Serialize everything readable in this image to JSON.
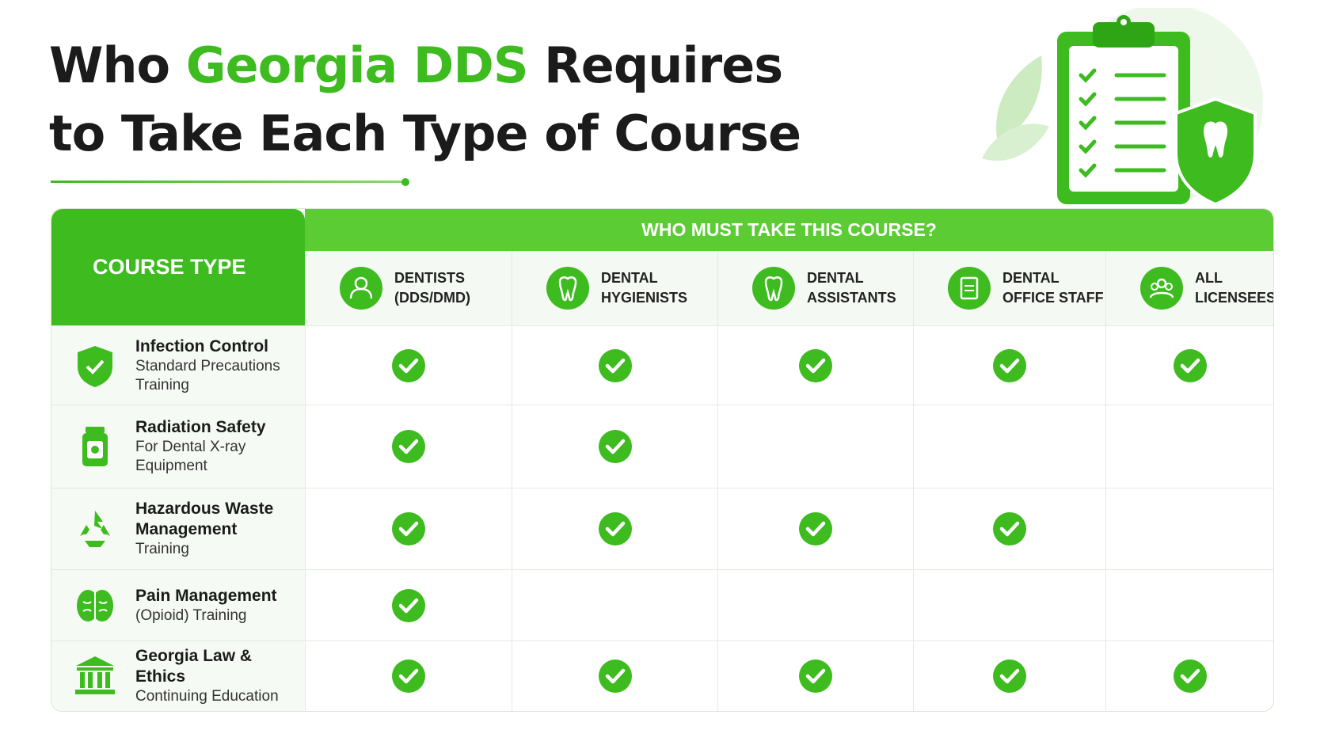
{
  "header": {
    "title_before": "Who ",
    "title_highlight": "Georgia DDS",
    "title_after": " Requires",
    "title_line2": "to Take Each Type of Course"
  },
  "table": {
    "course_type_header": "COURSE TYPE",
    "group_header": "WHO MUST TAKE THIS COURSE?",
    "columns": [
      {
        "lines": [
          "DENTISTS",
          "(DDS/DMD)"
        ]
      },
      {
        "lines": [
          "DENTAL",
          "HYGIENISTS"
        ]
      },
      {
        "lines": [
          "DENTAL",
          "ASSISTANTS"
        ]
      },
      {
        "lines": [
          "DENTAL",
          "OFFICE STAFF"
        ]
      },
      {
        "lines": [
          "ALL",
          "LICENSEES"
        ]
      }
    ],
    "rows": [
      {
        "name": "Infection Control",
        "detail": "Standard Precautions Training",
        "required": [
          true,
          true,
          true,
          true,
          true
        ]
      },
      {
        "name": "Radiation Safety",
        "detail": "For Dental X-ray Equipment",
        "required": [
          true,
          true,
          false,
          false,
          false
        ]
      },
      {
        "name": "Hazardous Waste Management",
        "detail": "Training",
        "required": [
          true,
          true,
          true,
          true,
          false
        ]
      },
      {
        "name": "Pain Management",
        "detail": "(Opioid) Training",
        "required": [
          true,
          false,
          false,
          false,
          false
        ]
      },
      {
        "name": "Georgia Law & Ethics",
        "detail": "Continuing Education",
        "required": [
          true,
          true,
          true,
          true,
          true
        ]
      }
    ]
  }
}
